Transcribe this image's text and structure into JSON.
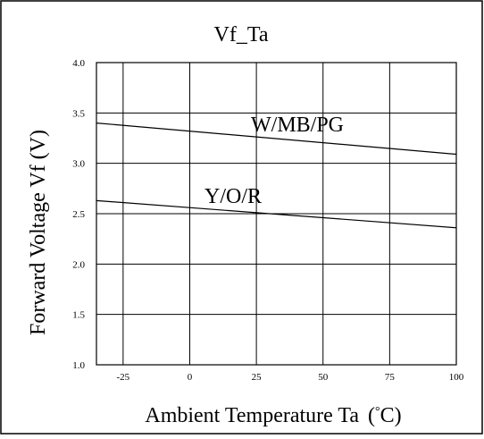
{
  "chart_data": {
    "type": "line",
    "title": "Vf_Ta",
    "xlabel": "Ambient Temperature Ta",
    "xlabel_unit_open": "(",
    "xlabel_unit_deg": "°",
    "xlabel_unit_tail": "C)",
    "ylabel": "Forward Voltage Vf  (V)",
    "xlim": [
      -35,
      100
    ],
    "ylim": [
      1.0,
      4.0
    ],
    "x_ticks": [
      -25,
      0,
      25,
      50,
      75,
      100
    ],
    "x_tick_labels": [
      "-25",
      "0",
      "25",
      "50",
      "75",
      "100"
    ],
    "y_ticks": [
      1.0,
      1.5,
      2.0,
      2.5,
      3.0,
      3.5,
      4.0
    ],
    "y_tick_labels": [
      "1.0",
      "1.5",
      "2.0",
      "2.5",
      "3.0",
      "3.5",
      "4.0"
    ],
    "grid": true,
    "series": [
      {
        "name": "W/MB/PG",
        "x": [
          -35,
          100
        ],
        "y": [
          3.4,
          3.09
        ]
      },
      {
        "name": "Y/O/R",
        "x": [
          -35,
          100
        ],
        "y": [
          2.63,
          2.36
        ]
      }
    ]
  }
}
